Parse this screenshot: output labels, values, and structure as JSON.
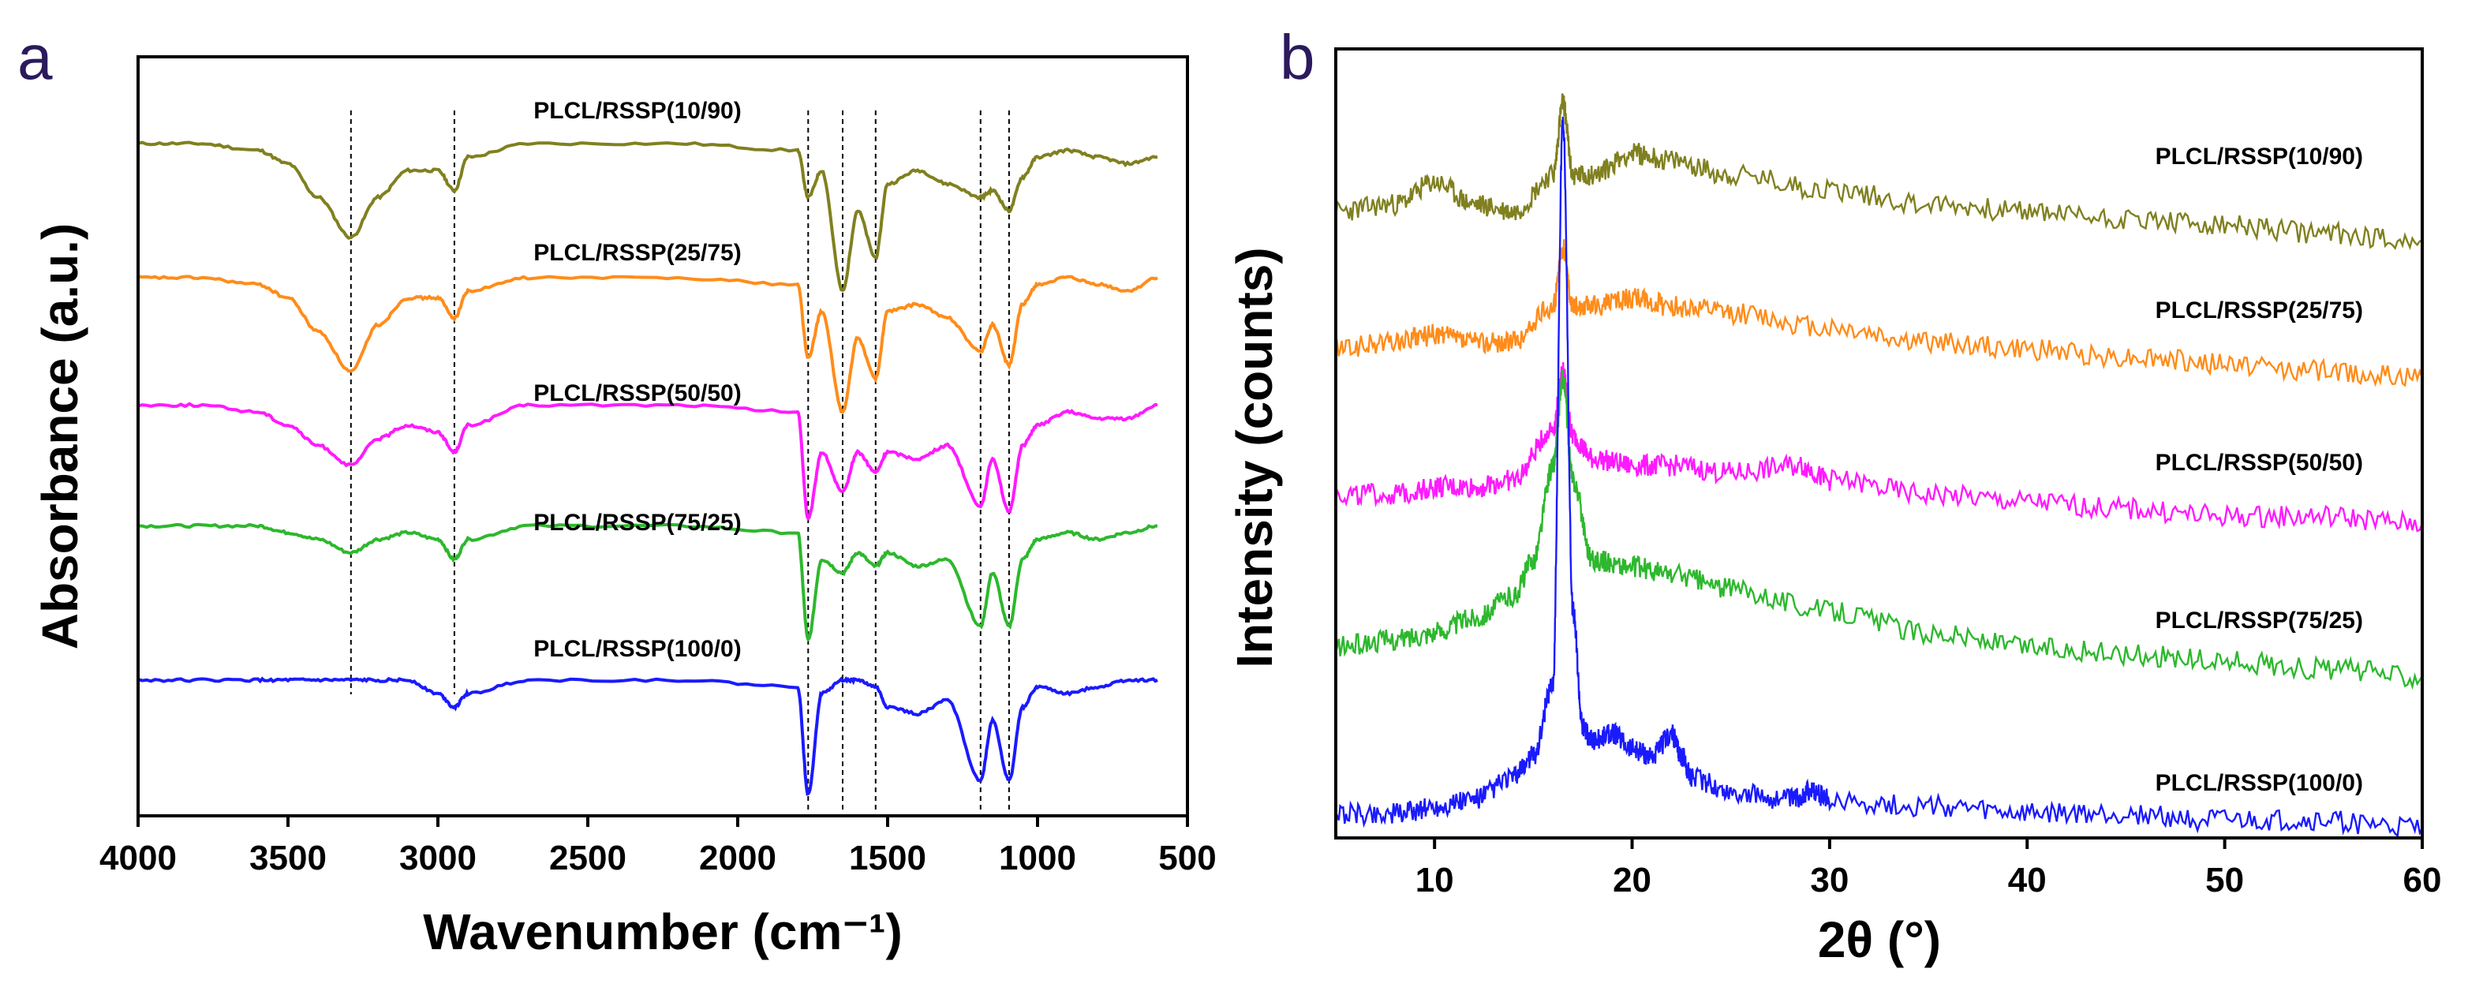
{
  "chart_data": [
    {
      "panel": "a",
      "type": "line",
      "xlabel": "Wavenumber (cm⁻¹)",
      "ylabel": "Absorbance (a.u.)",
      "xlim": [
        4000,
        500
      ],
      "x_reversed": true,
      "x_ticks": [
        4000,
        3500,
        3000,
        2500,
        2000,
        1500,
        1000,
        500
      ],
      "y_ticks": [],
      "x_range_plotted": [
        4000,
        600
      ],
      "reference_lines": [
        3290,
        2945,
        1765,
        1650,
        1540,
        1190,
        1095
      ],
      "series": [
        {
          "name": "PLCL/RSSP(10/90)",
          "color": "#808020",
          "x": [
            4000,
            3800,
            3600,
            3500,
            3400,
            3290,
            3200,
            3100,
            3000,
            2945,
            2900,
            2700,
            2200,
            1800,
            1765,
            1720,
            1650,
            1600,
            1540,
            1500,
            1400,
            1300,
            1190,
            1150,
            1095,
            1050,
            1000,
            900,
            800,
            700,
            600
          ],
          "y": [
            0.8,
            0.8,
            0.79,
            0.77,
            0.72,
            0.66,
            0.72,
            0.76,
            0.76,
            0.73,
            0.78,
            0.8,
            0.8,
            0.79,
            0.72,
            0.76,
            0.58,
            0.7,
            0.63,
            0.74,
            0.76,
            0.74,
            0.72,
            0.73,
            0.7,
            0.75,
            0.78,
            0.79,
            0.78,
            0.77,
            0.78
          ]
        },
        {
          "name": "PLCL/RSSP(25/75)",
          "color": "#ff8c1a",
          "x": [
            4000,
            3800,
            3600,
            3500,
            3400,
            3290,
            3200,
            3100,
            3000,
            2945,
            2900,
            2700,
            2200,
            1800,
            1765,
            1720,
            1650,
            1600,
            1540,
            1500,
            1400,
            1300,
            1190,
            1150,
            1095,
            1050,
            1000,
            900,
            800,
            700,
            600
          ],
          "y": [
            0.6,
            0.6,
            0.59,
            0.57,
            0.52,
            0.46,
            0.53,
            0.57,
            0.57,
            0.54,
            0.58,
            0.6,
            0.6,
            0.59,
            0.48,
            0.55,
            0.4,
            0.51,
            0.45,
            0.55,
            0.56,
            0.54,
            0.49,
            0.53,
            0.47,
            0.56,
            0.59,
            0.6,
            0.59,
            0.58,
            0.6
          ]
        },
        {
          "name": "PLCL/RSSP(50/50)",
          "color": "#ff1aff",
          "x": [
            4000,
            3800,
            3600,
            3500,
            3400,
            3290,
            3200,
            3100,
            3000,
            2945,
            2900,
            2700,
            2200,
            1800,
            1765,
            1720,
            1650,
            1600,
            1540,
            1500,
            1400,
            1300,
            1190,
            1150,
            1095,
            1050,
            1000,
            900,
            800,
            700,
            600
          ],
          "y": [
            0.41,
            0.41,
            0.4,
            0.38,
            0.35,
            0.32,
            0.36,
            0.38,
            0.37,
            0.34,
            0.38,
            0.41,
            0.41,
            0.4,
            0.24,
            0.34,
            0.28,
            0.34,
            0.31,
            0.34,
            0.33,
            0.35,
            0.26,
            0.33,
            0.25,
            0.35,
            0.38,
            0.4,
            0.39,
            0.39,
            0.41
          ]
        },
        {
          "name": "PLCL/RSSP(75/25)",
          "color": "#2db82d",
          "x": [
            4000,
            3800,
            3600,
            3500,
            3400,
            3290,
            3200,
            3100,
            3000,
            2945,
            2900,
            2700,
            2200,
            1800,
            1765,
            1720,
            1650,
            1600,
            1540,
            1500,
            1400,
            1300,
            1190,
            1150,
            1095,
            1050,
            1000,
            900,
            800,
            700,
            600
          ],
          "y": [
            0.23,
            0.23,
            0.23,
            0.22,
            0.21,
            0.19,
            0.21,
            0.22,
            0.21,
            0.18,
            0.21,
            0.23,
            0.23,
            0.22,
            0.06,
            0.18,
            0.16,
            0.19,
            0.17,
            0.19,
            0.17,
            0.18,
            0.08,
            0.16,
            0.08,
            0.18,
            0.21,
            0.22,
            0.21,
            0.22,
            0.23
          ]
        },
        {
          "name": "PLCL/RSSP(100/0)",
          "color": "#1a1aff",
          "x": [
            4000,
            3800,
            3600,
            3500,
            3400,
            3290,
            3200,
            3100,
            3000,
            2945,
            2900,
            2700,
            2200,
            1800,
            1765,
            1720,
            1650,
            1600,
            1540,
            1500,
            1400,
            1300,
            1190,
            1150,
            1095,
            1050,
            1000,
            900,
            800,
            700,
            600
          ],
          "y": [
            0.0,
            0.0,
            0.0,
            0.0,
            0.0,
            0.0,
            0.0,
            0.0,
            -0.02,
            -0.04,
            -0.02,
            0.0,
            0.0,
            -0.01,
            -0.17,
            -0.02,
            0.0,
            0.0,
            -0.01,
            -0.04,
            -0.05,
            -0.03,
            -0.15,
            -0.06,
            -0.15,
            -0.04,
            -0.01,
            -0.02,
            -0.01,
            0.0,
            0.0
          ]
        }
      ],
      "labels_shown": [
        "PLCL/RSSP(10/90)",
        "PLCL/RSSP(25/75)",
        "PLCL/RSSP(50/50)",
        "PLCL/RSSP(75/25)",
        "PLCL/RSSP(100/0)"
      ]
    },
    {
      "panel": "b",
      "type": "line",
      "xlabel": "2θ (°)",
      "ylabel": "Intensity (counts)",
      "xlim": [
        5,
        60
      ],
      "x_ticks": [
        10,
        20,
        30,
        40,
        50,
        60
      ],
      "y_ticks": [],
      "series": [
        {
          "name": "PLCL/RSSP(10/90)",
          "color": "#808020",
          "x": [
            5,
            8,
            10,
            12,
            14,
            16,
            16.5,
            17,
            18,
            20,
            22,
            25,
            30,
            35,
            40,
            45,
            50,
            55,
            60
          ],
          "y": [
            0.85,
            0.86,
            0.89,
            0.86,
            0.85,
            0.9,
            1.0,
            0.9,
            0.9,
            0.93,
            0.92,
            0.9,
            0.88,
            0.86,
            0.85,
            0.84,
            0.83,
            0.82,
            0.81
          ]
        },
        {
          "name": "PLCL/RSSP(25/75)",
          "color": "#ff8c1a",
          "x": [
            5,
            8,
            10,
            12,
            14,
            16,
            16.5,
            17,
            18,
            20,
            22,
            25,
            30,
            35,
            40,
            45,
            50,
            55,
            60
          ],
          "y": [
            0.66,
            0.67,
            0.68,
            0.67,
            0.67,
            0.72,
            0.8,
            0.72,
            0.72,
            0.73,
            0.72,
            0.71,
            0.69,
            0.67,
            0.66,
            0.65,
            0.64,
            0.63,
            0.62
          ]
        },
        {
          "name": "PLCL/RSSP(50/50)",
          "color": "#ff1aff",
          "x": [
            5,
            8,
            10,
            12,
            14,
            16,
            16.5,
            17,
            18,
            20,
            22,
            25,
            28.5,
            30,
            35,
            40,
            45,
            50,
            55,
            60
          ],
          "y": [
            0.46,
            0.46,
            0.47,
            0.47,
            0.48,
            0.55,
            0.63,
            0.54,
            0.51,
            0.5,
            0.5,
            0.49,
            0.5,
            0.48,
            0.46,
            0.45,
            0.44,
            0.43,
            0.43,
            0.42
          ]
        },
        {
          "name": "PLCL/RSSP(75/25)",
          "color": "#2db82d",
          "x": [
            5,
            8,
            10,
            12,
            14,
            15,
            16,
            16.5,
            17,
            18,
            20,
            22,
            25,
            30,
            35,
            40,
            45,
            50,
            55,
            60
          ],
          "y": [
            0.25,
            0.26,
            0.27,
            0.29,
            0.32,
            0.37,
            0.5,
            0.62,
            0.48,
            0.37,
            0.36,
            0.35,
            0.33,
            0.3,
            0.27,
            0.25,
            0.24,
            0.23,
            0.22,
            0.21
          ]
        },
        {
          "name": "PLCL/RSSP(100/0)",
          "color": "#1a1aff",
          "x": [
            5,
            8,
            10,
            12,
            14,
            15,
            16,
            16.5,
            17,
            17.5,
            18,
            19,
            20,
            21,
            22,
            22.5,
            23,
            25,
            28,
            29,
            30,
            35,
            40,
            45,
            50,
            55,
            60
          ],
          "y": [
            0.02,
            0.02,
            0.03,
            0.04,
            0.07,
            0.1,
            0.2,
            0.98,
            0.3,
            0.14,
            0.12,
            0.13,
            0.11,
            0.1,
            0.13,
            0.1,
            0.07,
            0.05,
            0.04,
            0.05,
            0.04,
            0.03,
            0.02,
            0.02,
            0.01,
            0.01,
            0.0
          ]
        }
      ],
      "labels_shown": [
        "PLCL/RSSP(10/90)",
        "PLCL/RSSP(25/75)",
        "PLCL/RSSP(50/50)",
        "PLCL/RSSP(75/25)",
        "PLCL/RSSP(100/0)"
      ]
    }
  ],
  "panels": {
    "a": {
      "letter": "a"
    },
    "b": {
      "letter": "b"
    }
  }
}
